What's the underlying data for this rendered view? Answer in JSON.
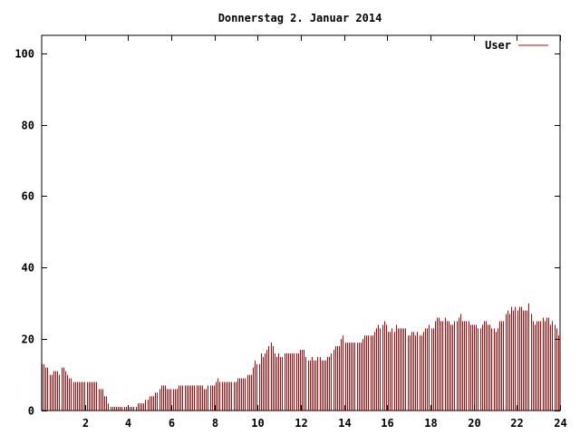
{
  "chart_data": {
    "type": "bar",
    "title": "Donnerstag 2. Januar 2014",
    "xlabel": "",
    "ylabel": "",
    "xlim": [
      0,
      24
    ],
    "ylim": [
      0,
      105
    ],
    "x_ticks": [
      2,
      4,
      6,
      8,
      10,
      12,
      14,
      16,
      18,
      20,
      22,
      24
    ],
    "y_ticks": [
      0,
      20,
      40,
      60,
      80,
      100
    ],
    "grid": false,
    "legend_position": "top-right",
    "bar_color": "#cc0000",
    "series": [
      {
        "name": "User",
        "color": "#cc0000",
        "y_values": [
          13,
          13,
          12,
          12,
          10,
          10,
          11,
          11,
          11,
          10,
          12,
          12,
          11,
          10,
          9,
          9,
          8,
          8,
          8,
          8,
          8,
          8,
          8,
          8,
          8,
          8,
          8,
          8,
          8,
          6,
          6,
          6,
          4,
          4,
          2,
          1,
          1,
          1,
          1,
          1,
          1,
          1,
          1,
          1,
          1,
          1,
          1,
          1,
          1,
          2,
          2,
          2,
          2,
          3,
          3,
          4,
          4,
          4,
          5,
          5,
          6,
          7,
          7,
          7,
          6,
          6,
          6,
          6,
          6,
          6,
          7,
          7,
          7,
          7,
          7,
          7,
          7,
          7,
          7,
          7,
          7,
          7,
          7,
          6,
          6,
          7,
          7,
          7,
          7,
          8,
          9,
          8,
          8,
          8,
          8,
          8,
          8,
          8,
          8,
          8,
          9,
          9,
          9,
          9,
          9,
          10,
          10,
          10,
          12,
          14,
          13,
          13,
          16,
          15,
          16,
          17,
          18,
          19,
          18,
          16,
          15,
          16,
          15,
          15,
          16,
          16,
          16,
          16,
          16,
          16,
          16,
          16,
          17,
          17,
          17,
          15,
          14,
          14,
          15,
          14,
          14,
          15,
          15,
          14,
          14,
          14,
          15,
          15,
          16,
          17,
          18,
          18,
          18,
          20,
          21,
          19,
          19,
          19,
          19,
          19,
          19,
          19,
          19,
          19,
          20,
          21,
          21,
          21,
          21,
          21,
          22,
          23,
          24,
          23,
          24,
          25,
          24,
          22,
          22,
          23,
          22,
          24,
          23,
          23,
          23,
          23,
          23,
          21,
          21,
          22,
          22,
          21,
          22,
          21,
          21,
          22,
          23,
          23,
          24,
          23,
          23,
          25,
          26,
          26,
          25,
          25,
          26,
          25,
          25,
          24,
          24,
          25,
          25,
          26,
          27,
          25,
          25,
          25,
          25,
          24,
          24,
          24,
          24,
          23,
          23,
          24,
          25,
          25,
          24,
          24,
          23,
          23,
          22,
          23,
          25,
          25,
          25,
          27,
          28,
          27,
          29,
          28,
          29,
          28,
          29,
          29,
          28,
          28,
          28,
          30,
          27,
          25,
          24,
          25,
          25,
          25,
          26,
          25,
          26,
          26,
          24,
          25,
          24,
          23,
          21
        ]
      }
    ]
  }
}
